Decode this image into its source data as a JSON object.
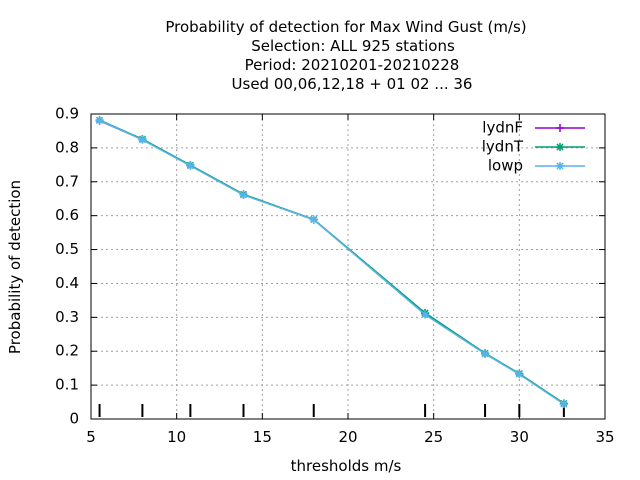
{
  "chart_data": {
    "type": "line",
    "title": [
      "Probability of detection  for Max Wind Gust (m/s)",
      "Selection: ALL    925 stations",
      "Period: 20210201-20210228",
      "Used  00,06,12,18 + 01 02 ... 36"
    ],
    "xlabel": "thresholds m/s",
    "ylabel": "Probability of detection",
    "xlim": [
      5,
      35
    ],
    "ylim": [
      0,
      0.9
    ],
    "xticks": [
      5,
      10,
      15,
      20,
      25,
      30,
      35
    ],
    "yticks": [
      0,
      0.1,
      0.2,
      0.3,
      0.4,
      0.5,
      0.6,
      0.7,
      0.8,
      0.9
    ],
    "xtick_labels": [
      "5",
      "10",
      "15",
      "20",
      "25",
      "30",
      "35"
    ],
    "ytick_labels": [
      "0",
      "0.1",
      "0.2",
      "0.3",
      "0.4",
      "0.5",
      "0.6",
      "0.7",
      "0.8",
      "0.9"
    ],
    "grid": true,
    "legend_position": "top-right",
    "threshold_markers": [
      5.5,
      8,
      10.8,
      13.9,
      18,
      24.5,
      28,
      30,
      32.6
    ],
    "x": [
      5.5,
      8,
      10.8,
      13.9,
      18,
      24.5,
      28,
      30,
      32.6
    ],
    "series": [
      {
        "name": "lydnF",
        "color": "#9400d3",
        "marker": "plus",
        "values": [
          0.88,
          0.825,
          0.748,
          0.662,
          0.588,
          0.312,
          0.193,
          0.133,
          0.045
        ]
      },
      {
        "name": "lydnT",
        "color": "#009e73",
        "marker": "star",
        "values": [
          0.882,
          0.826,
          0.749,
          0.663,
          0.589,
          0.313,
          0.194,
          0.134,
          0.046
        ]
      },
      {
        "name": "lowp",
        "color": "#56b4e9",
        "marker": "star",
        "values": [
          0.881,
          0.824,
          0.747,
          0.661,
          0.588,
          0.308,
          0.192,
          0.132,
          0.044
        ]
      }
    ]
  }
}
